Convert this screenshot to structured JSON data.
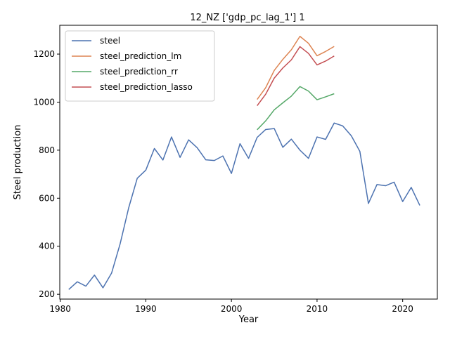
{
  "chart_data": {
    "type": "line",
    "title": "12_NZ ['gdp_pc_lag_1'] 1",
    "xlabel": "Year",
    "ylabel": "Steel production",
    "xlim": [
      1979.95,
      2024.05
    ],
    "ylim": [
      180,
      1320
    ],
    "xticks": [
      1980,
      1990,
      2000,
      2010,
      2020
    ],
    "yticks": [
      200,
      400,
      600,
      800,
      1000,
      1200
    ],
    "legend_position": "upper-left",
    "grid": false,
    "series": [
      {
        "name": "steel",
        "color": "#4c72b0",
        "x": [
          1981,
          1982,
          1983,
          1984,
          1985,
          1986,
          1987,
          1988,
          1989,
          1990,
          1991,
          1992,
          1993,
          1994,
          1995,
          1996,
          1997,
          1998,
          1999,
          2000,
          2001,
          2002,
          2003,
          2004,
          2005,
          2006,
          2007,
          2008,
          2009,
          2010,
          2011,
          2012,
          2013,
          2014,
          2015,
          2016,
          2017,
          2018,
          2019,
          2020,
          2021,
          2022
        ],
        "y": [
          220,
          252,
          234,
          280,
          227,
          288,
          410,
          560,
          683,
          717,
          807,
          759,
          855,
          770,
          843,
          810,
          760,
          757,
          776,
          703,
          827,
          766,
          853,
          886,
          890,
          812,
          846,
          800,
          766,
          855,
          845,
          913,
          901,
          860,
          795,
          578,
          657,
          652,
          667,
          586,
          645,
          570
        ]
      },
      {
        "name": "steel_prediction_lm",
        "color": "#dd8452",
        "x": [
          2003,
          2004,
          2005,
          2006,
          2007,
          2008,
          2009,
          2010,
          2011,
          2012
        ],
        "y": [
          1011,
          1060,
          1132,
          1178,
          1218,
          1274,
          1245,
          1193,
          1211,
          1232
        ]
      },
      {
        "name": "steel_prediction_rr",
        "color": "#55a868",
        "x": [
          2003,
          2004,
          2005,
          2006,
          2007,
          2008,
          2009,
          2010,
          2011,
          2012
        ],
        "y": [
          885,
          922,
          968,
          997,
          1025,
          1065,
          1046,
          1010,
          1022,
          1035
        ]
      },
      {
        "name": "steel_prediction_lasso",
        "color": "#c44e52",
        "x": [
          2003,
          2004,
          2005,
          2006,
          2007,
          2008,
          2009,
          2010,
          2011,
          2012
        ],
        "y": [
          985,
          1033,
          1100,
          1142,
          1176,
          1231,
          1203,
          1155,
          1171,
          1192
        ]
      }
    ]
  }
}
